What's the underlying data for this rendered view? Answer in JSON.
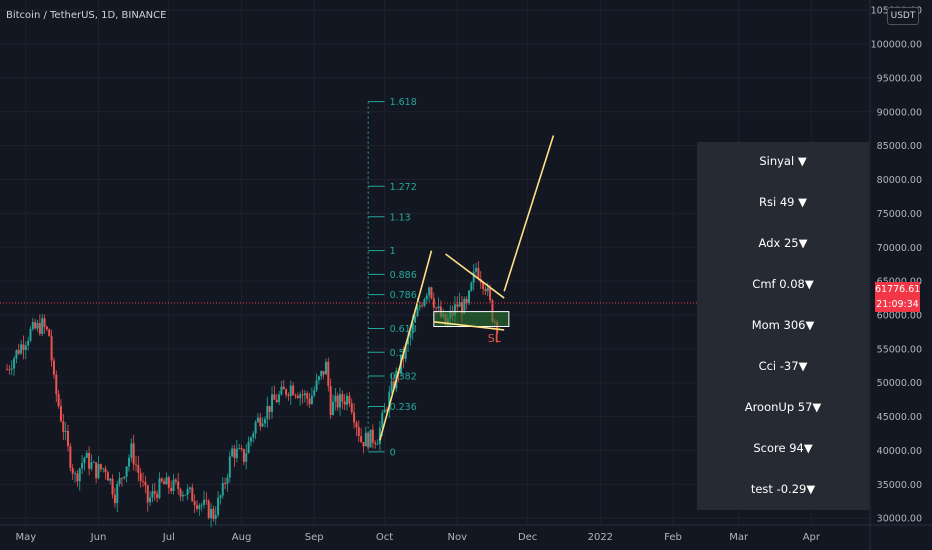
{
  "header": {
    "title": "Bitcoin / TetherUS, 1D, BINANCE"
  },
  "colors": {
    "up": "#26a69a",
    "down": "#ef5350",
    "fib": "#26a69a",
    "trend": "#ffe082",
    "zone": "#2e7d32",
    "sl": "#ef5350",
    "panel_bg": "#262a33",
    "current": "#f23645"
  },
  "price_scale": {
    "currency": "USDT",
    "current_price": "61776.61",
    "countdown": "21:09:34"
  },
  "panel": {
    "rows": [
      "Sinyal ▼",
      "Rsi   49 ▼",
      "Adx   25▼",
      "Cmf 0.08▼",
      "Mom   306▼",
      "Cci      -37▼",
      "AroonUp  57▼",
      "Score  94▼",
      "test   -0.29▼"
    ]
  },
  "annotations": {
    "stop_loss": "SL"
  },
  "chart_data": {
    "type": "candlestick",
    "title": "Bitcoin / TetherUS, 1D, BINANCE",
    "y_ticks": [
      "30000.00",
      "35000.00",
      "40000.00",
      "45000.00",
      "50000.00",
      "55000.00",
      "60000.00",
      "65000.00",
      "70000.00",
      "75000.00",
      "80000.00",
      "85000.00",
      "90000.00",
      "95000.00",
      "100000.00",
      "105000.00"
    ],
    "x_ticks": [
      "May",
      "Jun",
      "Jul",
      "Aug",
      "Sep",
      "Oct",
      "Nov",
      "Dec",
      "2022",
      "Feb",
      "Mar",
      "Apr"
    ],
    "ylim": [
      29000,
      106500
    ],
    "close_path": [
      [
        "2021-04-23",
        52000
      ],
      [
        "2021-04-28",
        55000
      ],
      [
        "2021-05-03",
        57500
      ],
      [
        "2021-05-08",
        58500
      ],
      [
        "2021-05-11",
        57000
      ],
      [
        "2021-05-13",
        50000
      ],
      [
        "2021-05-19",
        40000
      ],
      [
        "2021-05-22",
        36000
      ],
      [
        "2021-05-26",
        39000
      ],
      [
        "2021-05-31",
        37000
      ],
      [
        "2021-06-04",
        37500
      ],
      [
        "2021-06-08",
        33500
      ],
      [
        "2021-06-15",
        40000
      ],
      [
        "2021-06-22",
        32500
      ],
      [
        "2021-06-28",
        35000
      ],
      [
        "2021-07-05",
        34500
      ],
      [
        "2021-07-10",
        33500
      ],
      [
        "2021-07-15",
        32000
      ],
      [
        "2021-07-20",
        30500
      ],
      [
        "2021-07-24",
        34000
      ],
      [
        "2021-07-28",
        40000
      ],
      [
        "2021-08-02",
        39000
      ],
      [
        "2021-08-07",
        44000
      ],
      [
        "2021-08-14",
        47000
      ],
      [
        "2021-08-22",
        49500
      ],
      [
        "2021-08-30",
        47500
      ],
      [
        "2021-09-06",
        52500
      ],
      [
        "2021-09-08",
        46500
      ],
      [
        "2021-09-16",
        48000
      ],
      [
        "2021-09-21",
        41500
      ],
      [
        "2021-09-28",
        42000
      ],
      [
        "2021-10-03",
        48000
      ],
      [
        "2021-10-10",
        55000
      ],
      [
        "2021-10-16",
        61500
      ],
      [
        "2021-10-20",
        64500
      ],
      [
        "2021-10-23",
        61000
      ],
      [
        "2021-10-27",
        58500
      ],
      [
        "2021-11-01",
        61500
      ],
      [
        "2021-11-05",
        61000
      ],
      [
        "2021-11-09",
        67000
      ],
      [
        "2021-11-13",
        64500
      ],
      [
        "2021-11-16",
        60000
      ],
      [
        "2021-11-18",
        58500
      ]
    ],
    "fibonacci": {
      "levels": [
        {
          "label": "1.618",
          "price": 91500
        },
        {
          "label": "1.272",
          "price": 79000
        },
        {
          "label": "1.13",
          "price": 74500
        },
        {
          "label": "1",
          "price": 69500
        },
        {
          "label": "0.886",
          "price": 66000
        },
        {
          "label": "0.786",
          "price": 63000
        },
        {
          "label": "0.618",
          "price": 58000
        },
        {
          "label": "0.5",
          "price": 54500
        },
        {
          "label": "0.382",
          "price": 51000
        },
        {
          "label": "0.236",
          "price": 46500
        },
        {
          "label": "0",
          "price": 39800
        }
      ],
      "start": "2021-09-24",
      "end": "2021-10-01"
    },
    "trendlines": [
      {
        "from": [
          "2021-09-29",
          41500
        ],
        "to": [
          "2021-10-21",
          69500
        ]
      },
      {
        "from": [
          "2021-10-22",
          59000
        ],
        "to": [
          "2021-11-21",
          57800
        ]
      },
      {
        "from": [
          "2021-10-27",
          69000
        ],
        "to": [
          "2021-11-21",
          62500
        ]
      },
      {
        "from": [
          "2021-11-21",
          63500
        ],
        "to": [
          "2021-12-12",
          86500
        ]
      }
    ],
    "zone": {
      "from": "2021-10-22",
      "to": "2021-11-23",
      "high": 60500,
      "low": 58300
    },
    "current_price": 61776.61
  }
}
